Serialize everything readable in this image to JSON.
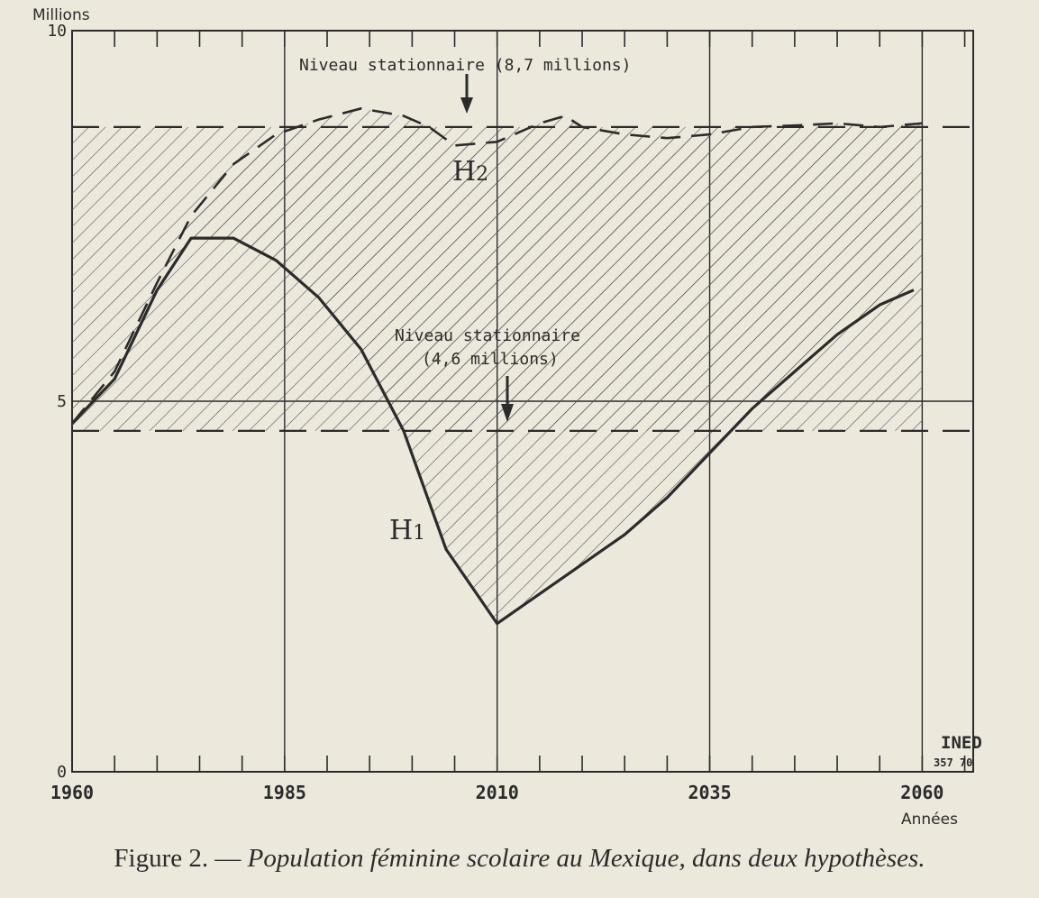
{
  "chart_data": {
    "type": "line",
    "title": "",
    "ylabel": "Millions",
    "xlabel": "Années",
    "xlim": [
      1960,
      2066
    ],
    "ylim": [
      0,
      10
    ],
    "x_ticks": [
      "1960",
      "1985",
      "2010",
      "2035",
      "2060"
    ],
    "y_ticks": [
      "0",
      "5",
      "10"
    ],
    "series": [
      {
        "name": "H1",
        "style": "solid",
        "x": [
          1960,
          1965,
          1970,
          1974,
          1979,
          1984,
          1989,
          1994,
          1999,
          2004,
          2010,
          2015,
          2020,
          2025,
          2030,
          2035,
          2040,
          2045,
          2050,
          2055,
          2059
        ],
        "y": [
          4.7,
          5.3,
          6.5,
          7.2,
          7.2,
          6.9,
          6.4,
          5.7,
          4.6,
          3.0,
          2.0,
          2.4,
          2.8,
          3.2,
          3.7,
          4.3,
          4.9,
          5.4,
          5.9,
          6.3,
          6.5
        ]
      },
      {
        "name": "H2",
        "style": "dashed",
        "x": [
          1960,
          1965,
          1970,
          1974,
          1979,
          1984,
          1989,
          1994,
          1999,
          2002,
          2005,
          2010,
          2015,
          2018,
          2020,
          2025,
          2030,
          2035,
          2040,
          2045,
          2050,
          2055,
          2060
        ],
        "y": [
          4.7,
          5.4,
          6.6,
          7.5,
          8.2,
          8.6,
          8.8,
          8.95,
          8.85,
          8.7,
          8.45,
          8.5,
          8.75,
          8.85,
          8.7,
          8.6,
          8.55,
          8.6,
          8.7,
          8.72,
          8.75,
          8.7,
          8.75
        ]
      }
    ],
    "reference_lines": [
      {
        "value": 8.7,
        "label": "Niveau stationnaire (8,7 millions)",
        "style": "dashed"
      },
      {
        "value": 4.6,
        "label_line1": "Niveau stationnaire",
        "label_line2": "(4,6 millions)",
        "style": "dashed"
      }
    ],
    "curve_labels": {
      "h2_main": "H",
      "h2_sub": "2",
      "h1_main": "H",
      "h1_sub": "1"
    },
    "stamp": {
      "line1": "INED",
      "line2": "357 70"
    },
    "grid": true
  },
  "caption": {
    "lead": "Figure 2. — ",
    "text": "Population féminine scolaire au Mexique, dans deux hypothèses."
  },
  "colors": {
    "background": "#ece8dc",
    "ink": "#2b2b2b",
    "hatch": "#555555"
  }
}
